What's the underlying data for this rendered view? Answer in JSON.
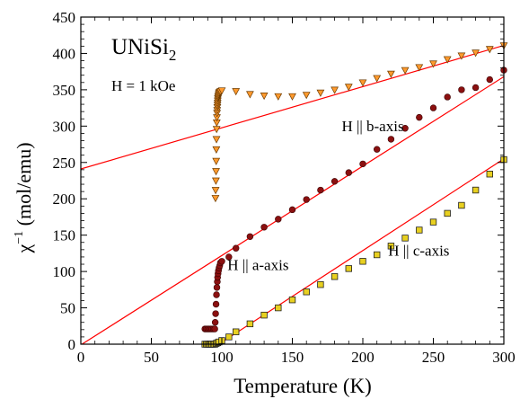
{
  "chart_data": {
    "type": "scatter",
    "title": "UNiSi",
    "title_sub": "2",
    "field_label": "H = 1 kOe",
    "xlabel": "Temperature (K)",
    "ylabel_main": "χ",
    "ylabel_sup": "−1",
    "ylabel_units": " (mol/emu)",
    "xlim": [
      0,
      300
    ],
    "ylim": [
      0,
      450
    ],
    "xticks": [
      0,
      50,
      100,
      150,
      200,
      250,
      300
    ],
    "yticks": [
      0,
      50,
      100,
      150,
      200,
      250,
      300,
      350,
      400,
      450
    ],
    "grid": false,
    "annotations": [
      {
        "text": "H || b-axis",
        "x": 185,
        "y": 293
      },
      {
        "text": "H || a-axis",
        "x": 104,
        "y": 102
      },
      {
        "text": "H || c-axis",
        "x": 218,
        "y": 122
      }
    ],
    "series": [
      {
        "marker": "triangle-down",
        "color": "#ff9a2e",
        "x": [
          95.5,
          95.6,
          95.8,
          95.9,
          96.0,
          96.1,
          96.2,
          96.3,
          96.4,
          96.5,
          96.6,
          96.7,
          96.8,
          96.9,
          97.0,
          97.1,
          97.2,
          97.4,
          97.6,
          97.8,
          98.0,
          98.5,
          99.0,
          100,
          110,
          120,
          130,
          140,
          150,
          160,
          170,
          180,
          190,
          200,
          210,
          220,
          230,
          240,
          250,
          260,
          270,
          280,
          290,
          300
        ],
        "y": [
          201,
          212,
          225,
          238,
          252,
          268,
          282,
          296,
          305,
          312,
          318,
          322,
          326,
          329,
          332,
          335,
          338,
          340,
          342,
          344,
          346,
          347,
          348,
          349,
          348,
          344,
          342,
          341,
          341,
          343,
          346,
          350,
          354,
          360,
          366,
          372,
          377,
          381,
          386,
          392,
          397,
          401,
          406,
          411
        ]
      },
      {
        "marker": "circle",
        "color": "#8b1010",
        "x": [
          88,
          89,
          90,
          91,
          92,
          93,
          94,
          95,
          95.3,
          95.6,
          95.9,
          96.2,
          96.5,
          96.8,
          97.0,
          97.3,
          97.6,
          98.0,
          98.5,
          99.0,
          100,
          105,
          110,
          120,
          130,
          140,
          150,
          160,
          170,
          180,
          190,
          200,
          210,
          220,
          230,
          240,
          250,
          260,
          270,
          280,
          290,
          300
        ],
        "y": [
          21,
          21,
          21,
          21,
          21,
          21,
          21,
          21,
          30,
          42,
          55,
          68,
          78,
          86,
          92,
          97,
          101,
          105,
          108,
          112,
          114,
          120,
          132,
          148,
          161,
          172,
          185,
          199,
          212,
          224,
          236,
          248,
          268,
          282,
          297,
          312,
          325,
          340,
          350,
          353,
          364,
          377
        ]
      },
      {
        "marker": "square",
        "color": "#e8d020",
        "x": [
          88,
          89,
          90,
          91,
          92,
          93,
          94,
          95,
          96,
          97,
          98,
          100,
          105,
          110,
          120,
          130,
          140,
          150,
          160,
          170,
          180,
          190,
          200,
          210,
          220,
          230,
          240,
          250,
          260,
          270,
          280,
          290,
          300
        ],
        "y": [
          0,
          0,
          0,
          0,
          0,
          0,
          0,
          0,
          1,
          2,
          3,
          5,
          10,
          17,
          28,
          40,
          50,
          61,
          72,
          82,
          93,
          104,
          114,
          123,
          135,
          146,
          157,
          168,
          180,
          191,
          212,
          234,
          254
        ]
      }
    ],
    "fit_lines": [
      {
        "color": "#ff0000",
        "x": [
          0,
          300
        ],
        "y": [
          241,
          411
        ]
      },
      {
        "color": "#ff0000",
        "x": [
          0,
          300
        ],
        "y": [
          -1,
          368
        ]
      },
      {
        "color": "#ff0000",
        "x": [
          90,
          300
        ],
        "y": [
          -10,
          255
        ]
      }
    ]
  }
}
